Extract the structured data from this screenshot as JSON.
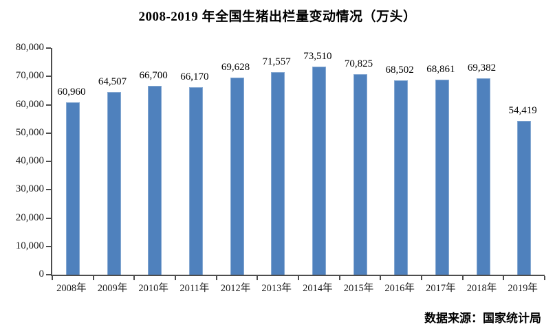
{
  "chart_data": {
    "type": "bar",
    "title": "2008-2019 年全国生猪出栏量变动情况（万头）",
    "categories": [
      "2008年",
      "2009年",
      "2010年",
      "2011年",
      "2012年",
      "2013年",
      "2014年",
      "2015年",
      "2016年",
      "2017年",
      "2018年",
      "2019年"
    ],
    "values": [
      60960,
      64507,
      66700,
      66170,
      69628,
      71557,
      73510,
      70825,
      68502,
      68861,
      69382,
      54419
    ],
    "value_labels": [
      "60,960",
      "64,507",
      "66,700",
      "66,170",
      "69,628",
      "71,557",
      "73,510",
      "70,825",
      "68,502",
      "68,861",
      "69,382",
      "54,419"
    ],
    "xlabel": "",
    "ylabel": "",
    "ylim": [
      0,
      80000
    ],
    "y_tick_step": 10000,
    "y_tick_labels": [
      "0",
      "10,000",
      "20,000",
      "30,000",
      "40,000",
      "50,000",
      "60,000",
      "70,000",
      "80,000"
    ],
    "grid": "off",
    "legend": "none",
    "bar_color": "#4f81bd",
    "axis_color": "#4d4d4d",
    "source": "数据来源：国家统计局"
  }
}
